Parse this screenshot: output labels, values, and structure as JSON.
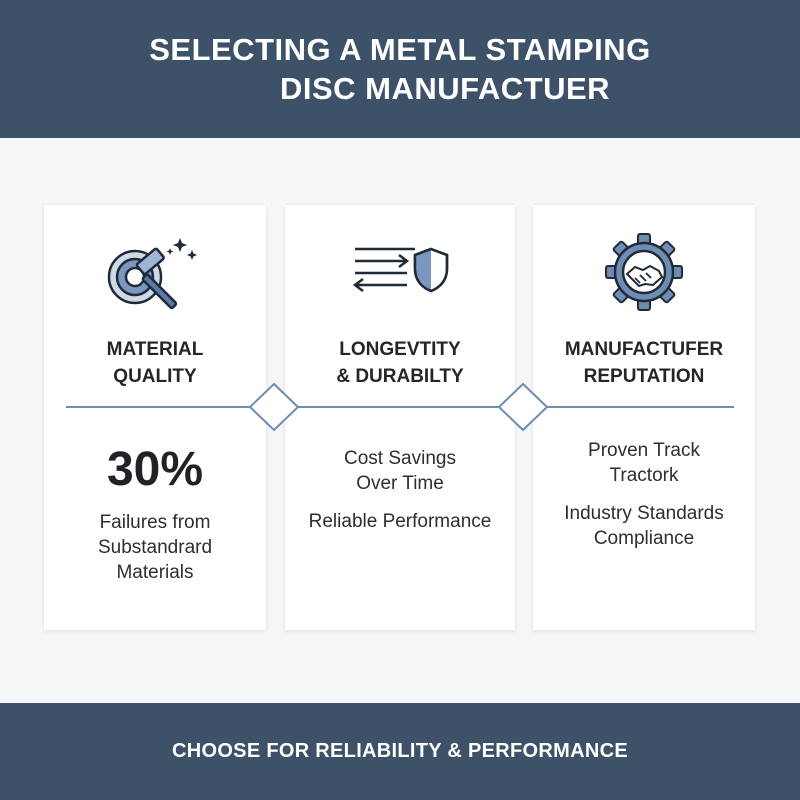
{
  "header": {
    "title_line1": "SELECTING A METAL STAMPING",
    "title_line2": "DISC MANUFACTUER"
  },
  "colors": {
    "header_bg": "#3d5169",
    "accent": "#5b7aa6",
    "divider": "#6f8db3"
  },
  "panels": [
    {
      "icon": "disc-hammer-icon",
      "heading_line1": "MATERIAL",
      "heading_line2": "QUALITY",
      "stat": "30%",
      "body": [
        "Failures from",
        "Substandrard",
        "Materials"
      ]
    },
    {
      "icon": "arrows-shield-icon",
      "heading_line1": "LONGEVTITY",
      "heading_line2": "& DURABILTY",
      "body_group1": [
        "Cost Savings",
        "Over Time"
      ],
      "body_group2": [
        "Reliable Performance"
      ]
    },
    {
      "icon": "gear-handshake-icon",
      "heading_line1": "MANUFACTUFER",
      "heading_line2": "REPUTATION",
      "body_group1": [
        "Proven Track",
        "Tractork"
      ],
      "body_group2": [
        "Industry Standards",
        "Compliance"
      ]
    }
  ],
  "footer": {
    "text": "CHOOSE FOR RELIABILITY & PERFORMANCE"
  }
}
